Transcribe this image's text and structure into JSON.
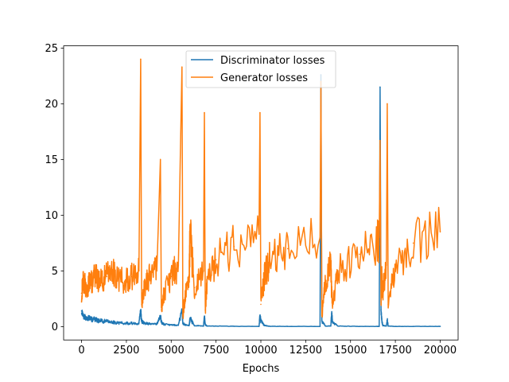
{
  "chart_data": {
    "type": "line",
    "title": "",
    "xlabel": "Epochs",
    "ylabel": "",
    "xlim": [
      -1000,
      21000
    ],
    "ylim": [
      -1.2,
      25.2
    ],
    "xticks": [
      0,
      2500,
      5000,
      7500,
      10000,
      12500,
      15000,
      17500,
      20000
    ],
    "yticks": [
      0,
      5,
      10,
      15,
      20,
      25
    ],
    "legend": {
      "location": "top-center"
    },
    "series": [
      {
        "name": "Discriminator losses",
        "color": "#1f77b4",
        "x": [
          0,
          100,
          300,
          500,
          800,
          1100,
          1400,
          1700,
          2000,
          2400,
          2800,
          3200,
          3300,
          3350,
          3500,
          3800,
          4200,
          4400,
          4450,
          4600,
          5000,
          5400,
          5600,
          5650,
          5800,
          6000,
          6050,
          6300,
          6800,
          6850,
          6900,
          7000,
          7500,
          8500,
          9900,
          9950,
          10000,
          10200,
          10500,
          11500,
          13300,
          13350,
          13400,
          13600,
          13900,
          13950,
          14000,
          14300,
          15500,
          16500,
          16600,
          16650,
          16700,
          16750,
          16800,
          17000,
          17050,
          17100,
          17500,
          18500,
          20000
        ],
        "y": [
          1.4,
          0.9,
          0.8,
          0.7,
          0.6,
          0.5,
          0.45,
          0.4,
          0.35,
          0.3,
          0.3,
          0.25,
          1.5,
          0.5,
          0.3,
          0.25,
          0.2,
          1.0,
          0.4,
          0.2,
          0.15,
          0.12,
          1.5,
          0.3,
          0.15,
          0.1,
          0.7,
          0.1,
          0.05,
          0.9,
          0.2,
          0.05,
          0.05,
          0.03,
          0.02,
          1.0,
          0.5,
          0.1,
          0.03,
          0.02,
          0.02,
          22.6,
          0.5,
          0.05,
          0.05,
          1.2,
          0.4,
          0.05,
          0.02,
          0.02,
          0.02,
          21.5,
          1.5,
          0.5,
          0.1,
          0.05,
          0.6,
          0.05,
          0.02,
          0.02,
          0.02
        ]
      },
      {
        "name": "Generator losses",
        "color": "#ff7f0e",
        "x": [
          0,
          100,
          300,
          500,
          800,
          1100,
          1400,
          1700,
          2000,
          2400,
          2800,
          3200,
          3300,
          3350,
          3500,
          3800,
          4200,
          4400,
          4450,
          4600,
          5000,
          5400,
          5600,
          5650,
          5800,
          6000,
          6050,
          6300,
          6800,
          6850,
          6900,
          7000,
          7500,
          8500,
          9900,
          9950,
          10000,
          10200,
          10500,
          11500,
          13300,
          13350,
          13400,
          13600,
          13900,
          13950,
          14000,
          14300,
          15500,
          16500,
          16600,
          16650,
          16700,
          16750,
          16800,
          17000,
          17050,
          17100,
          17500,
          18500,
          20000
        ],
        "y": [
          3.0,
          4.0,
          3.5,
          4.0,
          4.5,
          4.0,
          4.5,
          5.0,
          4.5,
          4.0,
          4.5,
          5.0,
          24.0,
          2.0,
          3.5,
          4.5,
          5.0,
          15.0,
          1.5,
          3.0,
          4.5,
          5.5,
          23.3,
          1.0,
          3.0,
          4.5,
          8.3,
          3.5,
          5.0,
          19.2,
          1.5,
          4.0,
          6.0,
          7.2,
          8.3,
          19.2,
          2.0,
          4.5,
          6.0,
          7.0,
          8.0,
          22.0,
          1.0,
          4.0,
          5.5,
          3.0,
          2.0,
          5.0,
          6.5,
          7.5,
          8.0,
          16.7,
          2.0,
          4.5,
          3.0,
          5.5,
          20.0,
          2.0,
          5.5,
          7.5,
          8.5
        ]
      }
    ]
  }
}
